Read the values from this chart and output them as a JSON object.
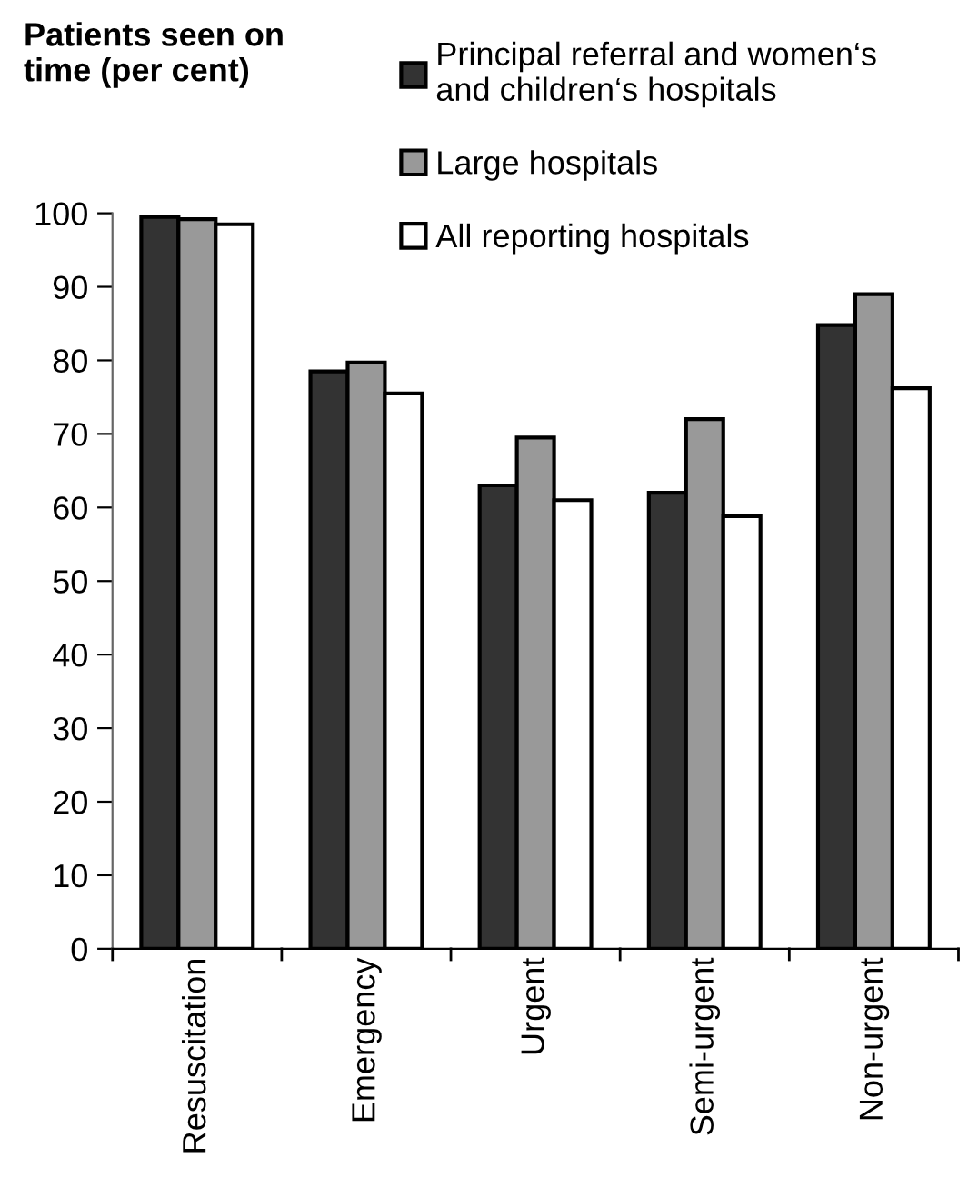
{
  "chart_data": {
    "type": "bar",
    "ylabel": "Patients seen on\ntime (per cent)",
    "categories": [
      "Resuscitation",
      "Emergency",
      "Urgent",
      "Semi-urgent",
      "Non-urgent"
    ],
    "series": [
      {
        "name": "Principal referral and women‘s\nand children‘s hospitals",
        "color": "#333333",
        "values": [
          99.5,
          78.5,
          63,
          62,
          84.8
        ]
      },
      {
        "name": "Large hospitals",
        "color": "#999999",
        "values": [
          99.2,
          79.7,
          69.5,
          72,
          89
        ]
      },
      {
        "name": "All reporting hospitals",
        "color": "#ffffff",
        "values": [
          98.5,
          75.5,
          61,
          58.8,
          76.2
        ]
      }
    ],
    "ylim": [
      0,
      100
    ],
    "yticks": [
      0,
      10,
      20,
      30,
      40,
      50,
      60,
      70,
      80,
      90,
      100
    ],
    "grid": false,
    "legend": "top right"
  }
}
